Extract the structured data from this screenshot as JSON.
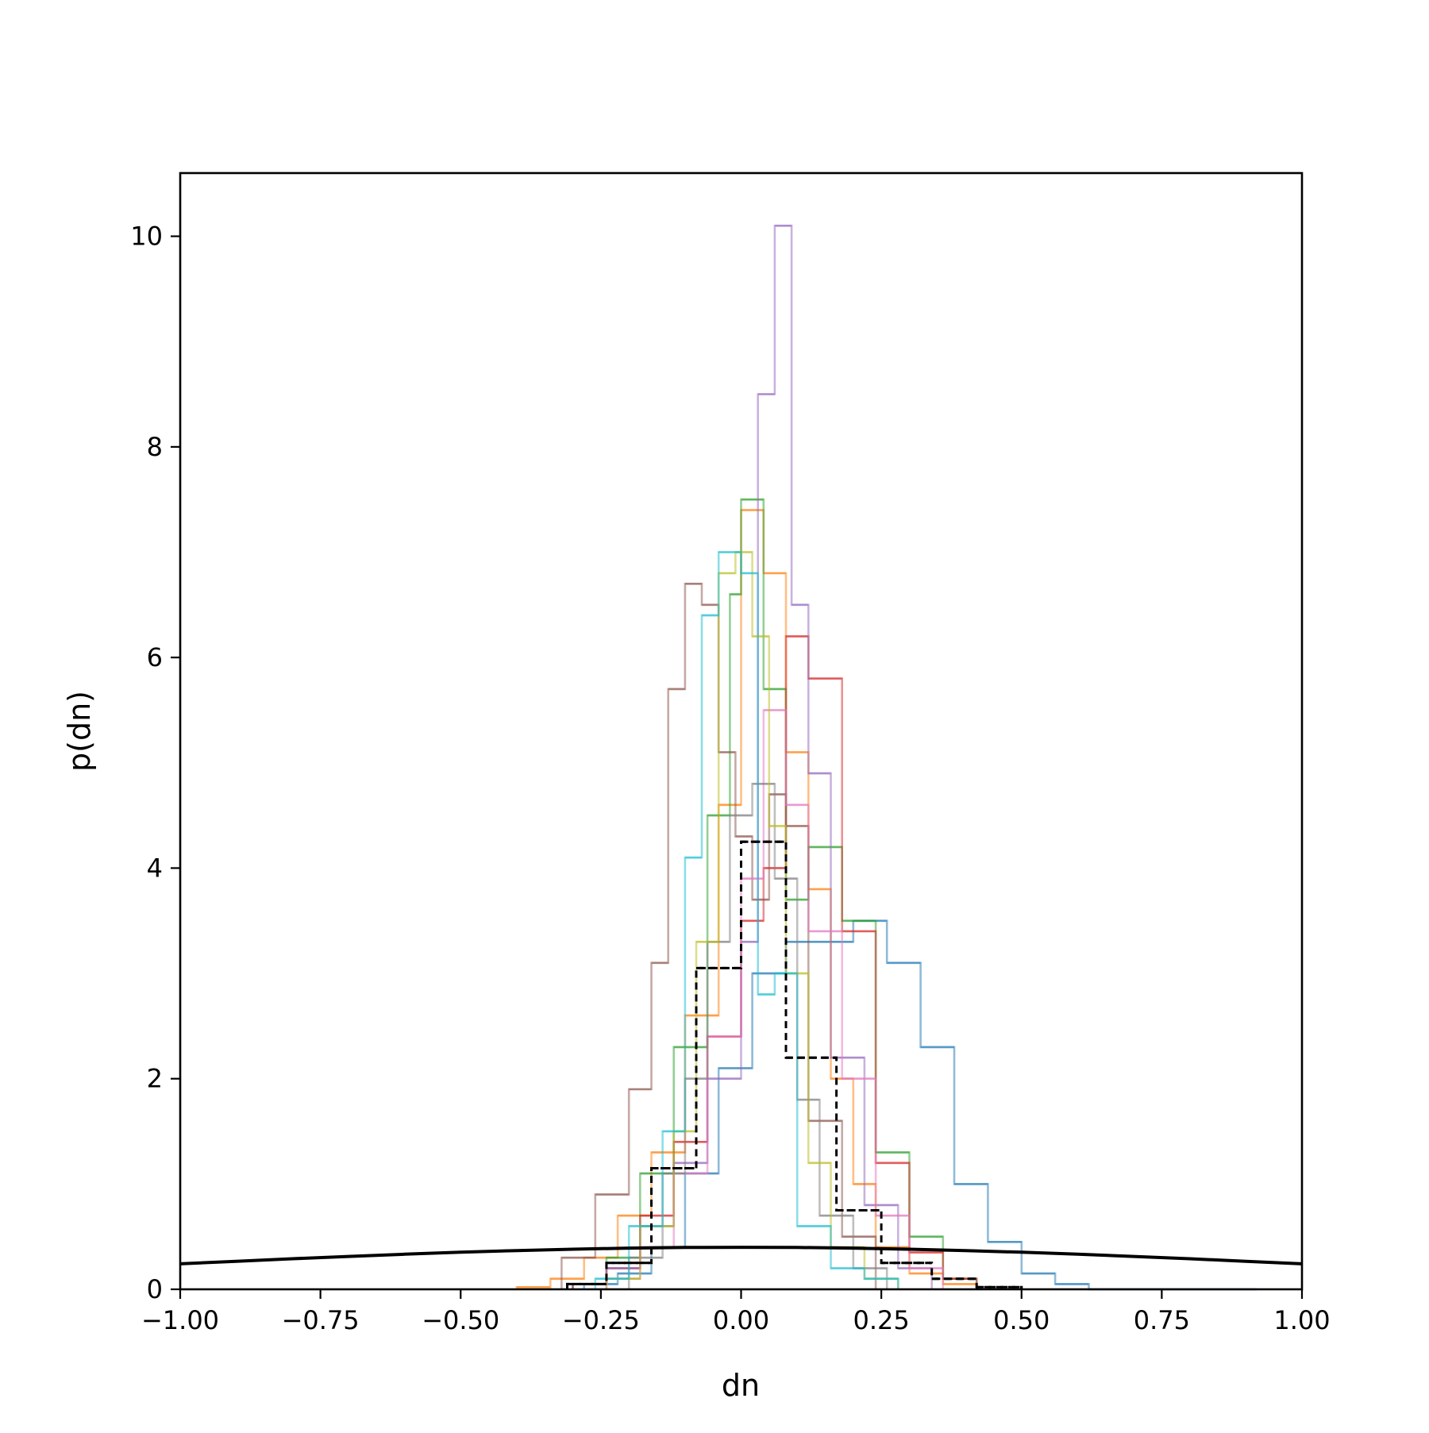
{
  "chart_data": {
    "type": "histogram",
    "xlabel": "dn",
    "ylabel": "p(dn)",
    "xlim": [
      -1.0,
      1.0
    ],
    "ylim": [
      0,
      10.6
    ],
    "grid": false,
    "x_ticks": [
      -1.0,
      -0.75,
      -0.5,
      -0.25,
      0.0,
      0.25,
      0.5,
      0.75,
      1.0
    ],
    "x_tick_labels": [
      "−1.00",
      "−0.75",
      "−0.50",
      "−0.25",
      "0.00",
      "0.25",
      "0.50",
      "0.75",
      "1.00"
    ],
    "y_ticks": [
      0,
      2,
      4,
      6,
      8,
      10
    ],
    "y_tick_labels": [
      "0",
      "2",
      "4",
      "6",
      "8",
      "10"
    ],
    "series": [
      {
        "color": "#1f77b4",
        "style": "step",
        "edges": [
          -0.28,
          -0.22,
          -0.16,
          -0.1,
          -0.04,
          0.02,
          0.08,
          0.14,
          0.2,
          0.26,
          0.32,
          0.38,
          0.44,
          0.5,
          0.56,
          0.62,
          0.68,
          0.74,
          0.8,
          0.86,
          0.92
        ],
        "values": [
          0.05,
          0.15,
          0.4,
          1.1,
          2.1,
          3.0,
          3.3,
          3.3,
          3.5,
          3.1,
          2.3,
          1.0,
          0.45,
          0.15,
          0.05,
          0.0,
          0.0,
          0.0,
          0.0,
          0.0
        ]
      },
      {
        "color": "#ff7f0e",
        "style": "step",
        "edges": [
          -0.4,
          -0.34,
          -0.28,
          -0.22,
          -0.16,
          -0.1,
          -0.04,
          0.0,
          0.04,
          0.08,
          0.12,
          0.16,
          0.2,
          0.24,
          0.3,
          0.36,
          0.42
        ],
        "values": [
          0.02,
          0.1,
          0.3,
          0.7,
          1.3,
          2.6,
          4.6,
          7.4,
          6.8,
          5.1,
          3.8,
          2.0,
          1.0,
          0.4,
          0.15,
          0.05
        ]
      },
      {
        "color": "#2ca02c",
        "style": "step",
        "edges": [
          -0.3,
          -0.24,
          -0.18,
          -0.12,
          -0.06,
          -0.02,
          0.0,
          0.04,
          0.08,
          0.12,
          0.18,
          0.24,
          0.3,
          0.36,
          0.42
        ],
        "values": [
          0.05,
          0.3,
          1.1,
          2.3,
          4.5,
          6.6,
          7.5,
          5.7,
          3.7,
          4.2,
          3.5,
          1.3,
          0.5,
          0.1
        ]
      },
      {
        "color": "#d62728",
        "style": "step",
        "edges": [
          -0.3,
          -0.24,
          -0.18,
          -0.12,
          -0.06,
          0.0,
          0.04,
          0.08,
          0.12,
          0.18,
          0.24,
          0.3,
          0.36,
          0.42
        ],
        "values": [
          0.05,
          0.2,
          0.7,
          1.4,
          2.4,
          3.5,
          4.0,
          6.2,
          5.8,
          3.4,
          1.2,
          0.35,
          0.1
        ]
      },
      {
        "color": "#9467bd",
        "style": "step",
        "edges": [
          -0.3,
          -0.24,
          -0.18,
          -0.12,
          -0.06,
          0.0,
          0.03,
          0.06,
          0.09,
          0.12,
          0.16,
          0.22,
          0.28,
          0.34
        ],
        "values": [
          0.05,
          0.2,
          0.6,
          1.2,
          2.0,
          3.3,
          8.5,
          10.1,
          6.5,
          4.9,
          2.2,
          0.8,
          0.2
        ]
      },
      {
        "color": "#8c564b",
        "style": "step",
        "edges": [
          -0.32,
          -0.26,
          -0.2,
          -0.16,
          -0.13,
          -0.1,
          -0.07,
          -0.04,
          -0.01,
          0.02,
          0.05,
          0.08,
          0.12,
          0.18,
          0.24
        ],
        "values": [
          0.3,
          0.9,
          1.9,
          3.1,
          5.7,
          6.7,
          6.5,
          5.1,
          4.3,
          3.7,
          4.7,
          4.4,
          1.6,
          0.5
        ]
      },
      {
        "color": "#e377c2",
        "style": "step",
        "edges": [
          -0.24,
          -0.18,
          -0.12,
          -0.06,
          0.0,
          0.04,
          0.08,
          0.12,
          0.18,
          0.24,
          0.3,
          0.36
        ],
        "values": [
          0.1,
          0.4,
          1.1,
          2.4,
          3.9,
          5.5,
          4.6,
          3.4,
          2.0,
          0.7,
          0.2
        ]
      },
      {
        "color": "#7f7f7f",
        "style": "step",
        "edges": [
          -0.2,
          -0.14,
          -0.1,
          -0.06,
          -0.02,
          0.02,
          0.06,
          0.1,
          0.14,
          0.2,
          0.26
        ],
        "values": [
          0.3,
          1.1,
          2.0,
          3.3,
          4.5,
          4.8,
          3.9,
          1.8,
          0.7,
          0.2
        ]
      },
      {
        "color": "#bcbd22",
        "style": "step",
        "edges": [
          -0.24,
          -0.18,
          -0.12,
          -0.08,
          -0.04,
          -0.01,
          0.02,
          0.05,
          0.08,
          0.12,
          0.16,
          0.22,
          0.28
        ],
        "values": [
          0.1,
          0.6,
          1.5,
          3.3,
          6.8,
          7.0,
          6.2,
          4.4,
          3.0,
          1.2,
          0.4,
          0.1
        ]
      },
      {
        "color": "#17becf",
        "style": "step",
        "edges": [
          -0.26,
          -0.2,
          -0.14,
          -0.1,
          -0.07,
          -0.04,
          0.0,
          0.03,
          0.06,
          0.1,
          0.16,
          0.22,
          0.28
        ],
        "values": [
          0.1,
          0.6,
          1.5,
          4.1,
          6.4,
          7.0,
          6.8,
          2.8,
          3.0,
          0.6,
          0.2,
          0.1
        ]
      },
      {
        "color": "#000000",
        "style": "step-dashed",
        "edges": [
          -0.31,
          -0.24,
          -0.16,
          -0.08,
          0.0,
          0.08,
          0.17,
          0.25,
          0.34,
          0.42,
          0.5
        ],
        "values": [
          0.05,
          0.25,
          1.15,
          3.05,
          4.25,
          2.2,
          0.75,
          0.25,
          0.1,
          0.02
        ]
      },
      {
        "color": "#000000",
        "style": "line",
        "x": [
          -1.0,
          -0.9,
          -0.8,
          -0.7,
          -0.6,
          -0.5,
          -0.4,
          -0.3,
          -0.2,
          -0.1,
          0.0,
          0.1,
          0.2,
          0.3,
          0.4,
          0.5,
          0.6,
          0.7,
          0.8,
          0.9,
          1.0
        ],
        "values": [
          0.242,
          0.266,
          0.29,
          0.312,
          0.333,
          0.352,
          0.368,
          0.381,
          0.391,
          0.397,
          0.399,
          0.397,
          0.391,
          0.381,
          0.368,
          0.352,
          0.333,
          0.312,
          0.29,
          0.266,
          0.242
        ]
      }
    ]
  }
}
